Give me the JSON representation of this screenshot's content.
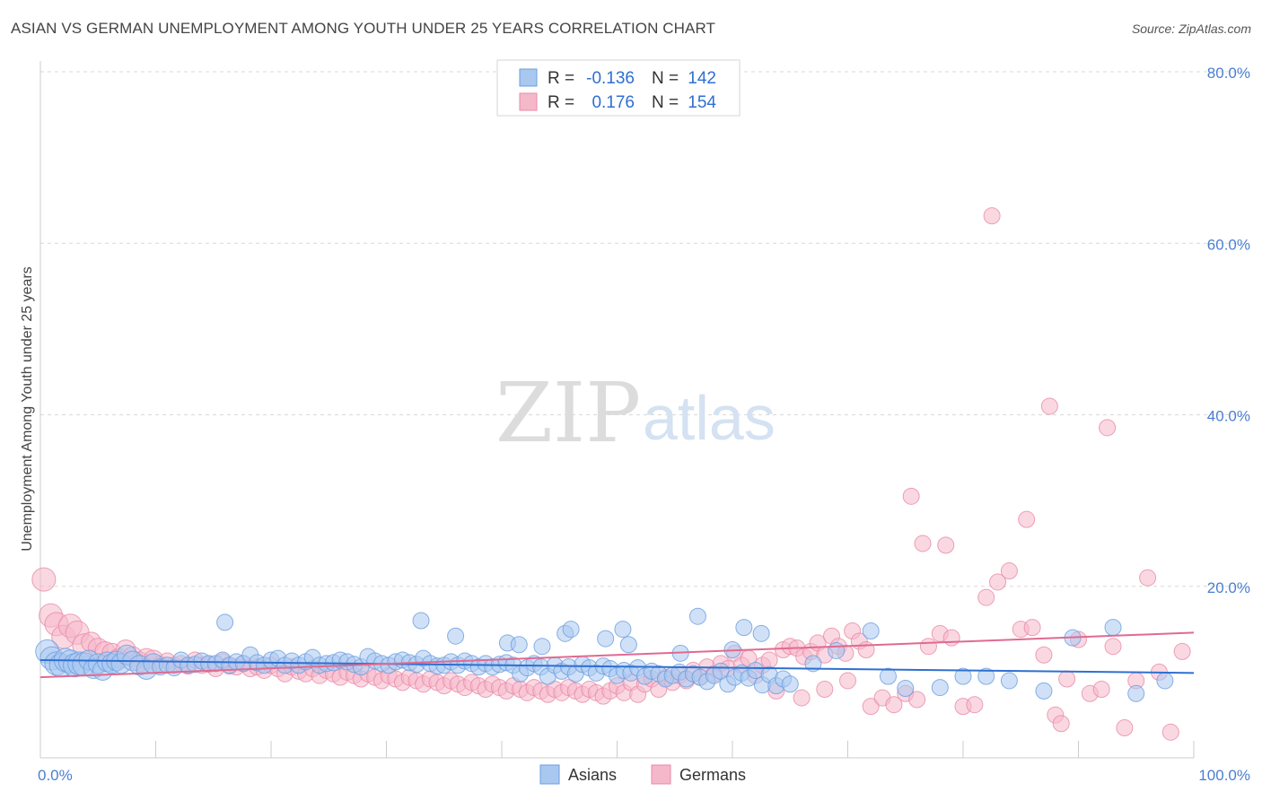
{
  "title": "ASIAN VS GERMAN UNEMPLOYMENT AMONG YOUTH UNDER 25 YEARS CORRELATION CHART",
  "source": "Source: ZipAtlas.com",
  "watermark": {
    "zip": "ZIP",
    "atlas": "atlas"
  },
  "colors": {
    "asians_fill": "#a9c8f0",
    "asians_stroke": "#6a9ee0",
    "asians_line": "#2f6fd0",
    "germans_fill": "#f5b8cb",
    "germans_stroke": "#e88aa8",
    "germans_line": "#e06a90",
    "tick_text": "#4a7fd0",
    "grid": "#d9d9d9"
  },
  "legend": {
    "rows": [
      {
        "r_label": "R =",
        "r_value": "-0.136",
        "n_label": "N =",
        "n_value": "142"
      },
      {
        "r_label": "R =",
        "r_value": "0.176",
        "n_label": "N =",
        "n_value": "154"
      }
    ]
  },
  "chart_data": {
    "type": "scatter",
    "title": "ASIAN VS GERMAN UNEMPLOYMENT AMONG YOUTH UNDER 25 YEARS CORRELATION CHART",
    "xlabel": "",
    "ylabel": "Unemployment Among Youth under 25 years",
    "xlim": [
      0,
      100
    ],
    "ylim": [
      0,
      80
    ],
    "x_tick_labels": [
      "0.0%",
      "100.0%"
    ],
    "y_ticks": [
      20,
      40,
      60,
      80
    ],
    "y_tick_labels": [
      "20.0%",
      "40.0%",
      "60.0%",
      "80.0%"
    ],
    "grid": true,
    "legend_position": "top-center",
    "series": [
      {
        "name": "Asians",
        "r": -0.136,
        "n": 142,
        "trend": {
          "x": [
            0,
            100
          ],
          "y": [
            11.4,
            9.9
          ]
        },
        "points": [
          [
            0.6,
            12.4
          ],
          [
            1.0,
            11.6
          ],
          [
            1.4,
            11.0
          ],
          [
            1.8,
            10.8
          ],
          [
            2.2,
            11.4
          ],
          [
            2.6,
            11.2
          ],
          [
            3.0,
            10.8
          ],
          [
            3.4,
            11.0
          ],
          [
            3.8,
            10.9
          ],
          [
            4.2,
            11.4
          ],
          [
            4.6,
            10.4
          ],
          [
            5.0,
            11.0
          ],
          [
            5.4,
            10.2
          ],
          [
            5.8,
            11.2
          ],
          [
            6.2,
            11.0
          ],
          [
            6.6,
            11.3
          ],
          [
            7.0,
            11.0
          ],
          [
            7.5,
            12.0
          ],
          [
            8.0,
            11.3
          ],
          [
            8.6,
            10.8
          ],
          [
            9.2,
            10.3
          ],
          [
            9.8,
            11.0
          ],
          [
            10.4,
            10.6
          ],
          [
            11.0,
            10.8
          ],
          [
            11.6,
            10.5
          ],
          [
            12.2,
            11.4
          ],
          [
            12.8,
            10.8
          ],
          [
            13.4,
            10.9
          ],
          [
            14.0,
            11.3
          ],
          [
            14.6,
            11.0
          ],
          [
            15.2,
            11.0
          ],
          [
            15.8,
            11.4
          ],
          [
            16.4,
            10.8
          ],
          [
            17.0,
            11.2
          ],
          [
            17.6,
            11.0
          ],
          [
            18.2,
            12.0
          ],
          [
            18.8,
            11.1
          ],
          [
            19.4,
            10.8
          ],
          [
            20.0,
            11.4
          ],
          [
            20.6,
            11.6
          ],
          [
            21.2,
            10.8
          ],
          [
            21.8,
            11.3
          ],
          [
            22.4,
            10.8
          ],
          [
            23.0,
            11.2
          ],
          [
            23.6,
            11.7
          ],
          [
            24.2,
            10.8
          ],
          [
            24.8,
            11.0
          ],
          [
            25.4,
            11.1
          ],
          [
            26.0,
            11.4
          ],
          [
            26.6,
            11.2
          ],
          [
            27.2,
            10.9
          ],
          [
            27.8,
            10.6
          ],
          [
            28.4,
            11.8
          ],
          [
            29.0,
            11.3
          ],
          [
            29.6,
            11.0
          ],
          [
            30.2,
            10.8
          ],
          [
            30.8,
            11.2
          ],
          [
            31.4,
            11.4
          ],
          [
            32.0,
            11.1
          ],
          [
            32.6,
            10.9
          ],
          [
            33.2,
            11.6
          ],
          [
            33.8,
            11.0
          ],
          [
            34.4,
            10.7
          ],
          [
            35.0,
            10.8
          ],
          [
            35.6,
            11.2
          ],
          [
            36.2,
            10.8
          ],
          [
            36.8,
            11.3
          ],
          [
            37.4,
            11.0
          ],
          [
            38.0,
            10.6
          ],
          [
            38.6,
            11.0
          ],
          [
            39.2,
            10.6
          ],
          [
            39.8,
            10.9
          ],
          [
            40.4,
            11.1
          ],
          [
            41.0,
            10.8
          ],
          [
            41.6,
            9.8
          ],
          [
            42.2,
            10.5
          ],
          [
            42.8,
            11.0
          ],
          [
            43.4,
            10.6
          ],
          [
            44.0,
            9.5
          ],
          [
            44.6,
            10.8
          ],
          [
            45.2,
            10.1
          ],
          [
            45.8,
            10.6
          ],
          [
            46.4,
            9.8
          ],
          [
            47.0,
            10.9
          ],
          [
            47.6,
            10.5
          ],
          [
            48.2,
            9.9
          ],
          [
            48.8,
            10.7
          ],
          [
            49.4,
            10.4
          ],
          [
            50.0,
            9.6
          ],
          [
            50.6,
            10.2
          ],
          [
            51.2,
            9.9
          ],
          [
            51.8,
            10.5
          ],
          [
            52.4,
            9.5
          ],
          [
            53.0,
            10.1
          ],
          [
            53.6,
            9.8
          ],
          [
            54.2,
            9.2
          ],
          [
            54.8,
            9.6
          ],
          [
            55.4,
            10.0
          ],
          [
            56.0,
            9.2
          ],
          [
            56.6,
            9.8
          ],
          [
            57.2,
            9.4
          ],
          [
            57.8,
            8.9
          ],
          [
            58.4,
            9.6
          ],
          [
            59.0,
            10.1
          ],
          [
            59.6,
            8.6
          ],
          [
            60.2,
            9.4
          ],
          [
            60.8,
            9.9
          ],
          [
            61.4,
            9.3
          ],
          [
            62.0,
            10.2
          ],
          [
            62.6,
            8.5
          ],
          [
            63.2,
            9.7
          ],
          [
            63.8,
            8.4
          ],
          [
            64.4,
            9.2
          ],
          [
            65.0,
            8.6
          ],
          [
            16.0,
            15.8
          ],
          [
            33.0,
            16.0
          ],
          [
            36.0,
            14.2
          ],
          [
            40.5,
            13.4
          ],
          [
            41.5,
            13.2
          ],
          [
            43.5,
            13.0
          ],
          [
            45.5,
            14.5
          ],
          [
            46.0,
            15.0
          ],
          [
            49.0,
            13.9
          ],
          [
            50.5,
            15.0
          ],
          [
            51.0,
            13.2
          ],
          [
            55.5,
            12.2
          ],
          [
            57.0,
            16.5
          ],
          [
            60.0,
            12.6
          ],
          [
            61.0,
            15.2
          ],
          [
            62.5,
            14.5
          ],
          [
            67.0,
            11.0
          ],
          [
            69.0,
            12.5
          ],
          [
            72.0,
            14.8
          ],
          [
            73.5,
            9.5
          ],
          [
            75.0,
            8.1
          ],
          [
            78.0,
            8.2
          ],
          [
            80.0,
            9.5
          ],
          [
            82.0,
            9.5
          ],
          [
            84.0,
            9.0
          ],
          [
            87.0,
            7.8
          ],
          [
            89.5,
            14.0
          ],
          [
            93.0,
            15.2
          ],
          [
            95.0,
            7.5
          ],
          [
            97.5,
            9.0
          ]
        ]
      },
      {
        "name": "Germans",
        "r": 0.176,
        "n": 154,
        "trend": {
          "x": [
            0,
            100
          ],
          "y": [
            9.4,
            14.6
          ]
        },
        "points": [
          [
            0.3,
            20.8
          ],
          [
            0.9,
            16.6
          ],
          [
            1.4,
            15.6
          ],
          [
            2.0,
            14.1
          ],
          [
            2.6,
            15.4
          ],
          [
            3.2,
            14.6
          ],
          [
            3.8,
            13.1
          ],
          [
            4.4,
            13.5
          ],
          [
            5.0,
            12.8
          ],
          [
            5.6,
            12.4
          ],
          [
            6.2,
            12.2
          ],
          [
            6.8,
            11.6
          ],
          [
            7.4,
            12.6
          ],
          [
            8.0,
            11.8
          ],
          [
            8.6,
            11.2
          ],
          [
            9.2,
            11.6
          ],
          [
            9.8,
            11.4
          ],
          [
            10.4,
            10.9
          ],
          [
            11.0,
            11.3
          ],
          [
            11.6,
            10.8
          ],
          [
            12.2,
            11.0
          ],
          [
            12.8,
            10.7
          ],
          [
            13.4,
            11.4
          ],
          [
            14.0,
            10.8
          ],
          [
            14.6,
            10.9
          ],
          [
            15.2,
            10.4
          ],
          [
            15.8,
            11.2
          ],
          [
            16.4,
            10.7
          ],
          [
            17.0,
            10.6
          ],
          [
            17.6,
            11.0
          ],
          [
            18.2,
            10.4
          ],
          [
            18.8,
            10.6
          ],
          [
            19.4,
            10.2
          ],
          [
            20.0,
            10.8
          ],
          [
            20.6,
            10.4
          ],
          [
            21.2,
            9.8
          ],
          [
            21.8,
            10.6
          ],
          [
            22.4,
            10.1
          ],
          [
            23.0,
            9.8
          ],
          [
            23.6,
            10.4
          ],
          [
            24.2,
            9.6
          ],
          [
            24.8,
            10.2
          ],
          [
            25.4,
            9.8
          ],
          [
            26.0,
            9.4
          ],
          [
            26.6,
            10.0
          ],
          [
            27.2,
            9.6
          ],
          [
            27.8,
            9.2
          ],
          [
            28.4,
            9.8
          ],
          [
            29.0,
            9.4
          ],
          [
            29.6,
            9.0
          ],
          [
            30.2,
            9.6
          ],
          [
            30.8,
            9.2
          ],
          [
            31.4,
            8.8
          ],
          [
            32.0,
            9.4
          ],
          [
            32.6,
            9.0
          ],
          [
            33.2,
            8.6
          ],
          [
            33.8,
            9.2
          ],
          [
            34.4,
            8.8
          ],
          [
            35.0,
            8.4
          ],
          [
            35.6,
            9.0
          ],
          [
            36.2,
            8.6
          ],
          [
            36.8,
            8.2
          ],
          [
            37.4,
            8.8
          ],
          [
            38.0,
            8.4
          ],
          [
            38.6,
            8.0
          ],
          [
            39.2,
            8.6
          ],
          [
            39.8,
            8.2
          ],
          [
            40.4,
            7.8
          ],
          [
            41.0,
            8.4
          ],
          [
            41.6,
            8.0
          ],
          [
            42.2,
            7.6
          ],
          [
            42.8,
            8.2
          ],
          [
            43.4,
            7.8
          ],
          [
            44.0,
            7.4
          ],
          [
            44.6,
            8.0
          ],
          [
            45.2,
            7.6
          ],
          [
            45.8,
            8.2
          ],
          [
            46.4,
            7.8
          ],
          [
            47.0,
            7.4
          ],
          [
            47.6,
            8.0
          ],
          [
            48.2,
            7.6
          ],
          [
            48.8,
            7.2
          ],
          [
            49.4,
            7.8
          ],
          [
            50.0,
            8.4
          ],
          [
            50.6,
            7.6
          ],
          [
            51.2,
            8.8
          ],
          [
            51.8,
            7.4
          ],
          [
            52.4,
            8.6
          ],
          [
            53.0,
            9.2
          ],
          [
            53.6,
            8.0
          ],
          [
            54.2,
            9.4
          ],
          [
            54.8,
            8.8
          ],
          [
            55.4,
            9.6
          ],
          [
            56.0,
            9.0
          ],
          [
            56.6,
            10.2
          ],
          [
            57.2,
            9.4
          ],
          [
            57.8,
            10.6
          ],
          [
            58.4,
            9.8
          ],
          [
            59.0,
            11.0
          ],
          [
            59.6,
            10.4
          ],
          [
            60.2,
            12.2
          ],
          [
            60.8,
            10.8
          ],
          [
            61.4,
            11.6
          ],
          [
            62.0,
            9.6
          ],
          [
            62.6,
            10.8
          ],
          [
            63.2,
            11.4
          ],
          [
            63.8,
            7.8
          ],
          [
            64.4,
            12.6
          ],
          [
            65.0,
            13.0
          ],
          [
            65.6,
            12.8
          ],
          [
            66.2,
            11.8
          ],
          [
            66.8,
            12.4
          ],
          [
            67.4,
            13.4
          ],
          [
            68.0,
            12.0
          ],
          [
            68.6,
            14.2
          ],
          [
            69.2,
            13.0
          ],
          [
            69.8,
            12.2
          ],
          [
            70.4,
            14.8
          ],
          [
            71.0,
            13.6
          ],
          [
            71.6,
            12.6
          ],
          [
            72.0,
            6.0
          ],
          [
            73.0,
            7.0
          ],
          [
            74.0,
            6.2
          ],
          [
            75.0,
            7.5
          ],
          [
            76.0,
            6.8
          ],
          [
            77.0,
            13.0
          ],
          [
            78.0,
            14.5
          ],
          [
            79.0,
            14.0
          ],
          [
            80.0,
            6.0
          ],
          [
            81.0,
            6.2
          ],
          [
            82.0,
            18.7
          ],
          [
            83.0,
            20.5
          ],
          [
            84.0,
            21.8
          ],
          [
            85.0,
            15.0
          ],
          [
            86.0,
            15.2
          ],
          [
            87.0,
            12.0
          ],
          [
            88.0,
            5.0
          ],
          [
            88.5,
            4.0
          ],
          [
            89.0,
            9.2
          ],
          [
            90.0,
            13.8
          ],
          [
            91.0,
            7.5
          ],
          [
            92.0,
            8.0
          ],
          [
            93.0,
            13.0
          ],
          [
            94.0,
            3.5
          ],
          [
            95.0,
            9.0
          ],
          [
            96.0,
            21.0
          ],
          [
            97.0,
            10.0
          ],
          [
            98.0,
            3.0
          ],
          [
            99.0,
            12.4
          ],
          [
            66.0,
            7.0
          ],
          [
            68.0,
            8.0
          ],
          [
            70.0,
            9.0
          ],
          [
            75.5,
            30.5
          ],
          [
            76.5,
            25.0
          ],
          [
            78.5,
            24.8
          ],
          [
            82.5,
            63.2
          ],
          [
            87.5,
            41.0
          ],
          [
            85.5,
            27.8
          ],
          [
            92.5,
            38.5
          ]
        ]
      }
    ]
  },
  "bottom_legend": {
    "items": [
      "Asians",
      "Germans"
    ]
  }
}
